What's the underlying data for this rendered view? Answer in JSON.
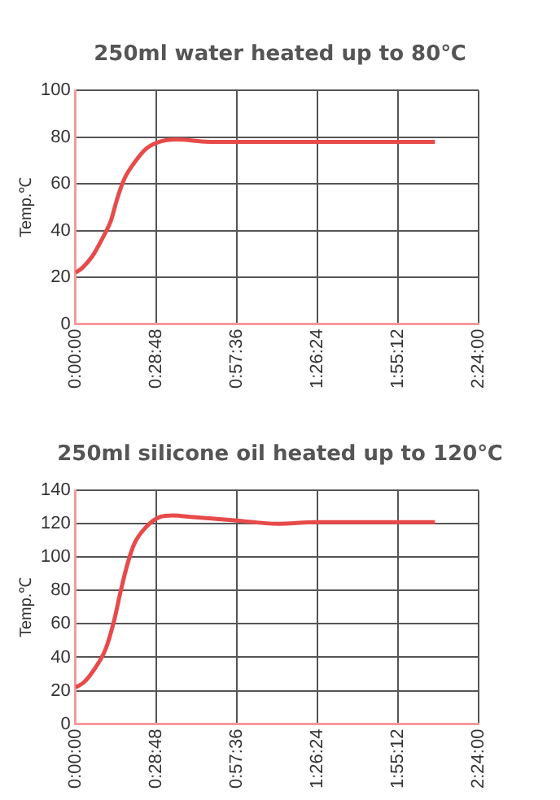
{
  "chart_data": [
    {
      "type": "line",
      "title": "250ml water heated up to 80℃",
      "ylabel": "Temp.℃",
      "x": [
        0,
        0.04,
        0.1,
        0.17,
        0.21,
        0.25,
        0.29,
        0.35,
        0.42,
        0.5,
        0.6,
        0.8,
        1.0,
        1.2,
        1.44,
        1.7,
        2.14
      ],
      "series": [
        {
          "color": "#e84a4a",
          "values": [
            22,
            24,
            29,
            38,
            44,
            54,
            62,
            69,
            75,
            78,
            79,
            78,
            78,
            78,
            78,
            78,
            78
          ]
        }
      ],
      "xlim": [
        0,
        2.4
      ],
      "xticks": [
        {
          "value": 0,
          "label": "0:00:00"
        },
        {
          "value": 0.48,
          "label": "0:28:48"
        },
        {
          "value": 0.96,
          "label": "0:57:36"
        },
        {
          "value": 1.44,
          "label": "1:26:24"
        },
        {
          "value": 1.92,
          "label": "1:55:12"
        },
        {
          "value": 2.4,
          "label": "2:24:00"
        }
      ],
      "ylim": [
        0,
        100
      ],
      "yticks": [
        0,
        20,
        40,
        60,
        80,
        100
      ],
      "grid": true,
      "legend": false,
      "marker": "none",
      "line_style": "solid"
    },
    {
      "type": "line",
      "title": "250ml silicone oil heated up to 120℃",
      "ylabel": "Temp.℃",
      "x": [
        0,
        0.05,
        0.12,
        0.18,
        0.23,
        0.27,
        0.31,
        0.35,
        0.42,
        0.5,
        0.58,
        0.7,
        0.96,
        1.2,
        1.44,
        1.7,
        2.14
      ],
      "series": [
        {
          "color": "#e84a4a",
          "values": [
            22,
            25,
            34,
            45,
            62,
            80,
            96,
            108,
            118,
            124,
            125,
            124,
            122,
            120,
            121,
            121,
            121
          ]
        }
      ],
      "xlim": [
        0,
        2.4
      ],
      "xticks": [
        {
          "value": 0,
          "label": "0:00:00"
        },
        {
          "value": 0.48,
          "label": "0:28:48"
        },
        {
          "value": 0.96,
          "label": "0:57:36"
        },
        {
          "value": 1.44,
          "label": "1:26:24"
        },
        {
          "value": 1.92,
          "label": "1:55:12"
        },
        {
          "value": 2.4,
          "label": "2:24:00"
        }
      ],
      "ylim": [
        0,
        140
      ],
      "yticks": [
        0,
        20,
        40,
        60,
        80,
        100,
        120,
        140
      ],
      "grid": true,
      "legend": false,
      "marker": "none",
      "line_style": "solid"
    }
  ]
}
